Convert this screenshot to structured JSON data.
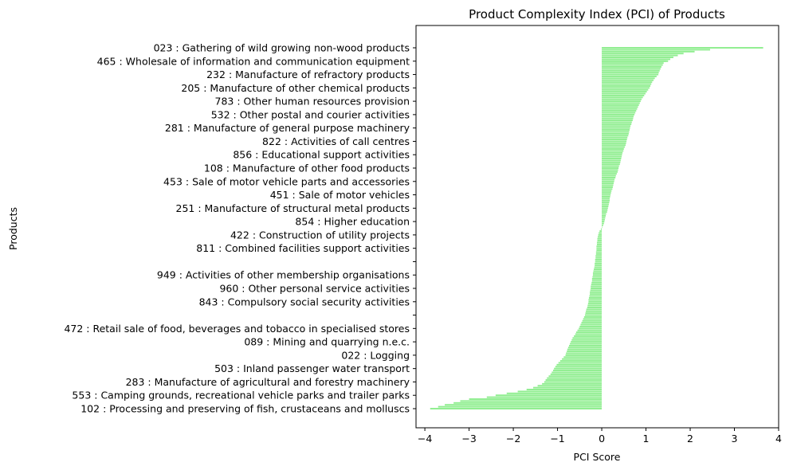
{
  "chart_data": {
    "type": "bar",
    "orientation": "horizontal",
    "title": "Product Complexity Index (PCI) of Products",
    "xlabel": "PCI Score",
    "ylabel": "Products",
    "xlim": [
      -4.2,
      4.0
    ],
    "xticks": [
      -4,
      -3,
      -2,
      -1,
      0,
      1,
      2,
      3,
      4
    ],
    "xtick_labels": [
      "−4",
      "−3",
      "−2",
      "−1",
      "0",
      "1",
      "2",
      "3",
      "4"
    ],
    "bar_color": "#90ee90",
    "grid": false,
    "visible_ytick_labels": [
      "023 : Gathering of wild growing non-wood products",
      "465 : Wholesale of information and communication equipment",
      "232 : Manufacture of refractory products",
      "205 : Manufacture of other chemical products",
      "783 : Other human resources provision",
      "532 : Other postal and courier activities",
      "281 : Manufacture of general purpose machinery",
      "822 : Activities of call centres",
      "856 : Educational support activities",
      "108 : Manufacture of other food products",
      "453 : Sale of motor vehicle parts and accessories",
      "451 : Sale of motor vehicles",
      "251 : Manufacture of structural metal products",
      "854 : Higher education",
      "422 : Construction of utility projects",
      "811 : Combined facilities support activities",
      "",
      "949 : Activities of other membership organisations",
      "960 : Other personal service activities",
      "843 : Compulsory social security activities",
      "",
      "472 : Retail sale of food, beverages and tobacco in specialised stores",
      "089 : Mining and quarrying n.e.c.",
      "022 : Logging",
      "503 : Inland passenger water transport",
      "283 : Manufacture of agricultural and forestry machinery",
      "553 : Camping grounds, recreational vehicle parks and trailer parks",
      "102 : Processing and preserving of fish, crustaceans and molluscs"
    ],
    "categories": [
      "023 : Gathering of wild growing non-wood products",
      "465 : Wholesale of information and communication equipment",
      "232 : Manufacture of refractory products",
      "205 : Manufacture of other chemical products",
      "783 : Other human resources provision",
      "532 : Other postal and courier activities",
      "281 : Manufacture of general purpose machinery",
      "822 : Activities of call centres",
      "856 : Educational support activities",
      "108 : Manufacture of other food products",
      "453 : Sale of motor vehicle parts and accessories",
      "451 : Sale of motor vehicles",
      "251 : Manufacture of structural metal products",
      "854 : Higher education",
      "422 : Construction of utility projects",
      "811 : Combined facilities support activities",
      "",
      "949 : Activities of other membership organisations",
      "960 : Other personal service activities",
      "843 : Compulsory social security activities",
      "",
      "472 : Retail sale of food, beverages and tobacco in specialised stores",
      "089 : Mining and quarrying n.e.c.",
      "022 : Logging",
      "503 : Inland passenger water transport",
      "283 : Manufacture of agricultural and forestry machinery",
      "553 : Camping grounds, recreational vehicle parks and trailer parks",
      "102 : Processing and preserving of fish, crustaceans and molluscs"
    ],
    "values": [
      3.65,
      1.45,
      1.28,
      1.08,
      0.88,
      0.74,
      0.64,
      0.56,
      0.46,
      0.38,
      0.28,
      0.2,
      0.14,
      0.06,
      -0.08,
      -0.12,
      -0.15,
      -0.2,
      -0.25,
      -0.3,
      -0.38,
      -0.52,
      -0.7,
      -0.82,
      -1.08,
      -1.3,
      -2.4,
      -3.88
    ],
    "extra_bars_between_labels": [
      [
        2.45,
        2.1,
        1.85,
        1.72,
        1.62,
        1.55,
        1.5
      ],
      [
        1.4,
        1.38,
        1.35,
        1.33,
        1.31,
        1.29
      ],
      [
        1.24,
        1.2,
        1.17,
        1.14,
        1.12,
        1.1
      ],
      [
        1.05,
        1.02,
        0.99,
        0.96,
        0.93,
        0.9
      ],
      [
        0.86,
        0.84,
        0.82,
        0.8,
        0.78,
        0.76
      ],
      [
        0.72,
        0.71,
        0.7,
        0.68,
        0.67,
        0.65
      ],
      [
        0.63,
        0.62,
        0.61,
        0.6,
        0.58,
        0.57
      ],
      [
        0.55,
        0.54,
        0.52,
        0.5,
        0.49,
        0.47
      ],
      [
        0.45,
        0.44,
        0.43,
        0.42,
        0.41,
        0.39
      ],
      [
        0.37,
        0.36,
        0.34,
        0.32,
        0.31,
        0.29
      ],
      [
        0.27,
        0.26,
        0.25,
        0.24,
        0.22,
        0.21
      ],
      [
        0.19,
        0.18,
        0.18,
        0.17,
        0.16,
        0.15
      ],
      [
        0.13,
        0.12,
        0.1,
        0.09,
        0.08,
        0.07
      ],
      [
        0.05,
        0.03,
        0.01,
        -0.02,
        -0.05,
        -0.07
      ],
      [
        -0.09,
        -0.1,
        -0.1,
        -0.11,
        -0.11,
        -0.12
      ],
      [
        -0.12,
        -0.13,
        -0.13,
        -0.14,
        -0.14,
        -0.15
      ],
      [
        -0.16,
        -0.16,
        -0.17,
        -0.18,
        -0.19,
        -0.2
      ],
      [
        -0.21,
        -0.22,
        -0.22,
        -0.23,
        -0.24,
        -0.25
      ],
      [
        -0.26,
        -0.27,
        -0.27,
        -0.28,
        -0.29,
        -0.3
      ],
      [
        -0.31,
        -0.32,
        -0.33,
        -0.35,
        -0.36,
        -0.37
      ],
      [
        -0.4,
        -0.42,
        -0.44,
        -0.46,
        -0.48,
        -0.5
      ],
      [
        -0.55,
        -0.58,
        -0.6,
        -0.63,
        -0.66,
        -0.68
      ],
      [
        -0.72,
        -0.74,
        -0.76,
        -0.78,
        -0.79,
        -0.81
      ],
      [
        -0.86,
        -0.9,
        -0.94,
        -0.98,
        -1.02,
        -1.05
      ],
      [
        -1.1,
        -1.13,
        -1.16,
        -1.2,
        -1.24,
        -1.27
      ],
      [
        -1.35,
        -1.45,
        -1.55,
        -1.7,
        -1.9,
        -2.15
      ],
      [
        -2.6,
        -3.0,
        -3.2,
        -3.35,
        -3.55,
        -3.7
      ]
    ]
  }
}
